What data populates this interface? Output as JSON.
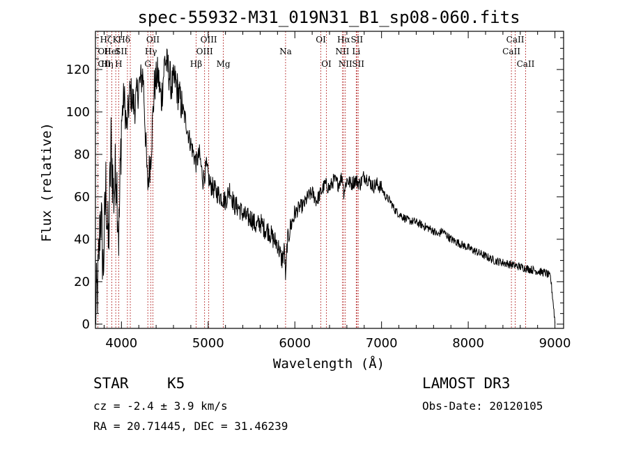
{
  "chart_data": {
    "type": "line",
    "title": "spec-55932-M31_019N31_B1_sp08-060.fits",
    "xlabel": "Wavelength (Å)",
    "ylabel": "Flux (relative)",
    "xlim": [
      3700,
      9100
    ],
    "ylim": [
      -2,
      138
    ],
    "xticks": [
      4000,
      5000,
      6000,
      7000,
      8000,
      9000
    ],
    "yticks": [
      0,
      20,
      40,
      60,
      80,
      100,
      120
    ],
    "xtick_labels": [
      "4000",
      "5000",
      "6000",
      "7000",
      "8000",
      "9000"
    ],
    "ytick_labels": [
      "0",
      "20",
      "40",
      "60",
      "80",
      "100",
      "120"
    ],
    "spectrum": {
      "x": [
        3700,
        3730,
        3760,
        3790,
        3820,
        3850,
        3880,
        3910,
        3940,
        3970,
        4000,
        4030,
        4060,
        4100,
        4150,
        4200,
        4250,
        4300,
        4340,
        4380,
        4420,
        4460,
        4500,
        4540,
        4580,
        4620,
        4660,
        4700,
        4740,
        4780,
        4820,
        4860,
        4900,
        4940,
        4980,
        5020,
        5060,
        5100,
        5150,
        5200,
        5250,
        5300,
        5350,
        5400,
        5450,
        5500,
        5550,
        5600,
        5650,
        5700,
        5750,
        5800,
        5850,
        5880,
        5895,
        5910,
        5950,
        6000,
        6050,
        6100,
        6150,
        6200,
        6250,
        6300,
        6350,
        6400,
        6450,
        6500,
        6550,
        6563,
        6600,
        6650,
        6700,
        6750,
        6800,
        6850,
        6900,
        6950,
        7000,
        7050,
        7100,
        7150,
        7200,
        7300,
        7400,
        7500,
        7600,
        7650,
        7700,
        7800,
        7900,
        8000,
        8100,
        8200,
        8300,
        8400,
        8500,
        8600,
        8700,
        8800,
        8900,
        8950,
        8980,
        9000
      ],
      "y": [
        5,
        20,
        55,
        25,
        65,
        35,
        85,
        60,
        75,
        40,
        95,
        108,
        92,
        110,
        102,
        112,
        118,
        65,
        80,
        112,
        118,
        105,
        125,
        120,
        112,
        115,
        108,
        102,
        96,
        88,
        82,
        76,
        80,
        68,
        74,
        66,
        64,
        62,
        60,
        58,
        64,
        56,
        55,
        52,
        50,
        50,
        46,
        48,
        45,
        44,
        40,
        38,
        30,
        35,
        20,
        38,
        46,
        52,
        55,
        56,
        60,
        62,
        58,
        62,
        66,
        64,
        68,
        66,
        70,
        62,
        68,
        66,
        68,
        66,
        70,
        68,
        65,
        66,
        64,
        60,
        58,
        54,
        52,
        49,
        48,
        46,
        44,
        42,
        44,
        40,
        38,
        36,
        34,
        32,
        30,
        29,
        28,
        27,
        26,
        25,
        24,
        22,
        10,
        1
      ]
    },
    "lines": [
      {
        "label": "Hδ",
        "x": 4102,
        "row": 0,
        "anchor": "end"
      },
      {
        "label": "K",
        "x": 3934,
        "row": 0,
        "anchor": "middle"
      },
      {
        "label": "Hζ",
        "x": 3889,
        "row": 0,
        "anchor": "end"
      },
      {
        "label": "OII",
        "x": 3727,
        "row": 1,
        "anchor": "start"
      },
      {
        "label": "HeI",
        "x": 3889,
        "row": 1,
        "anchor": "middle"
      },
      {
        "label": "SII",
        "x": 4069,
        "row": 1,
        "anchor": "end"
      },
      {
        "label": "CII",
        "x": 3727,
        "row": 2,
        "anchor": "start"
      },
      {
        "label": "Hη",
        "x": 3835,
        "row": 2,
        "anchor": "middle"
      },
      {
        "label": "H",
        "x": 3968,
        "row": 2,
        "anchor": "middle"
      },
      {
        "label": "OII",
        "x": 4363,
        "row": 0,
        "anchor": "middle"
      },
      {
        "label": "Hγ",
        "x": 4340,
        "row": 1,
        "anchor": "middle"
      },
      {
        "label": "G",
        "x": 4304,
        "row": 2,
        "anchor": "middle"
      },
      {
        "label": "OIII",
        "x": 5007,
        "row": 0,
        "anchor": "middle"
      },
      {
        "label": "OIII",
        "x": 4959,
        "row": 1,
        "anchor": "middle"
      },
      {
        "label": "Hβ",
        "x": 4861,
        "row": 2,
        "anchor": "middle"
      },
      {
        "label": "Mg",
        "x": 5175,
        "row": 2,
        "anchor": "middle"
      },
      {
        "label": "Na",
        "x": 5893,
        "row": 1,
        "anchor": "middle"
      },
      {
        "label": "OI",
        "x": 6300,
        "row": 0,
        "anchor": "middle"
      },
      {
        "label": "OI",
        "x": 6364,
        "row": 2,
        "anchor": "middle"
      },
      {
        "label": "Hα",
        "x": 6563,
        "row": 0,
        "anchor": "middle"
      },
      {
        "label": "SII",
        "x": 6716,
        "row": 0,
        "anchor": "middle"
      },
      {
        "label": "NII",
        "x": 6548,
        "row": 1,
        "anchor": "middle"
      },
      {
        "label": "Li",
        "x": 6708,
        "row": 1,
        "anchor": "middle"
      },
      {
        "label": "NII",
        "x": 6583,
        "row": 2,
        "anchor": "middle"
      },
      {
        "label": "SII",
        "x": 6731,
        "row": 2,
        "anchor": "middle"
      },
      {
        "label": "CaII",
        "x": 8542,
        "row": 0,
        "anchor": "middle"
      },
      {
        "label": "CaII",
        "x": 8498,
        "row": 1,
        "anchor": "middle"
      },
      {
        "label": "CaII",
        "x": 8662,
        "row": 2,
        "anchor": "middle"
      }
    ]
  },
  "info": {
    "object_class": "STAR",
    "subclass": "K5",
    "survey": "LAMOST DR3",
    "redshift": "cz = -2.4 ± 3.9 km/s",
    "obs_date": "Obs-Date: 20120105",
    "coords": "RA =  20.71445, DEC =  31.46239"
  },
  "colors": {
    "spectrum": "#000000",
    "emission_lines": "#b22222",
    "axes": "#000000",
    "background": "#ffffff"
  }
}
